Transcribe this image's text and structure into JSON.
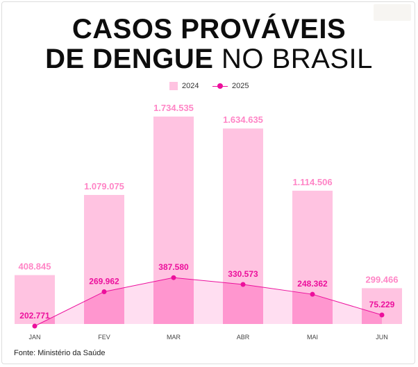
{
  "title_line1": "CASOS PROVÁVEIS",
  "title_line2_bold": "DE DENGUE",
  "title_line2_light": "NO BRASIL",
  "source": "Fonte: Ministério da Saúde",
  "colors": {
    "bar_2024": "#ffc3e1",
    "bar_2024_overlap": "#ff96cf",
    "area_2025": "#ffd3ec",
    "line_2025": "#ec0f9c",
    "label_2024": "#ff85c6",
    "label_2025": "#ec0f9c"
  },
  "chart_data": {
    "type": "bar",
    "title": "CASOS PROVÁVEIS DE DENGUE NO BRASIL",
    "categories": [
      "JAN",
      "FEV",
      "MAR",
      "ABR",
      "MAI",
      "JUN"
    ],
    "series": [
      {
        "name": "2024",
        "type": "bar",
        "values": [
          408845,
          1079075,
          1734535,
          1634635,
          1114506,
          299466
        ],
        "labels": [
          "408.845",
          "1.079.075",
          "1.734.535",
          "1.634.635",
          "1.114.506",
          "299.466"
        ]
      },
      {
        "name": "2025",
        "type": "line",
        "values": [
          202771,
          269962,
          387580,
          330573,
          248362,
          75229
        ],
        "labels": [
          "202.771",
          "269.962",
          "387.580",
          "330.573",
          "248.362",
          "75.229"
        ]
      }
    ],
    "ylim": [
      0,
      1734535
    ],
    "legend": "top-center",
    "grid": false
  }
}
